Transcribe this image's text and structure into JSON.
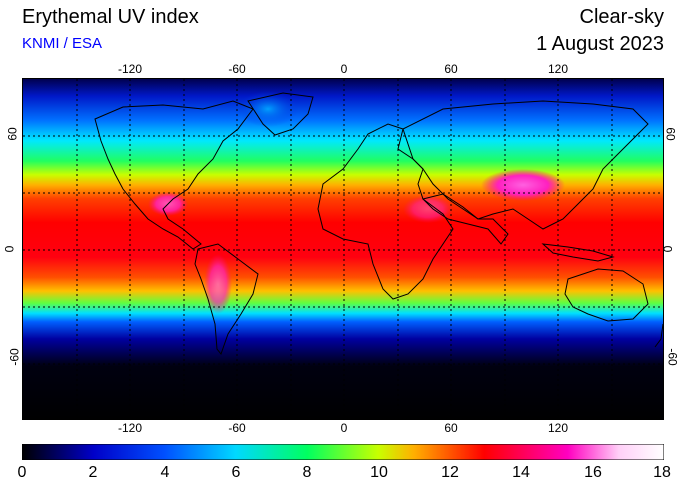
{
  "header": {
    "title": "Erythemal UV index",
    "source": "KNMI / ESA",
    "condition": "Clear-sky",
    "date": "1 August 2023"
  },
  "map": {
    "lon_ticks": [
      "-120",
      "-60",
      "0",
      "60",
      "120"
    ],
    "lat_ticks": [
      "60",
      "0",
      "-60"
    ],
    "projection": "equirectangular",
    "lon_range": [
      -180,
      180
    ],
    "lat_range": [
      -90,
      90
    ],
    "grid": "dotted every 30 degrees"
  },
  "colorbar": {
    "labels": [
      "0",
      "2",
      "4",
      "6",
      "8",
      "10",
      "12",
      "14",
      "16",
      "18"
    ],
    "range": [
      0,
      18
    ],
    "colors": [
      "#000000",
      "#0000c8",
      "#0050ff",
      "#00d8ff",
      "#00ff60",
      "#c8ff00",
      "#ffb000",
      "#ff0000",
      "#ff00c0",
      "#ffd0f8",
      "#ffffff"
    ]
  }
}
